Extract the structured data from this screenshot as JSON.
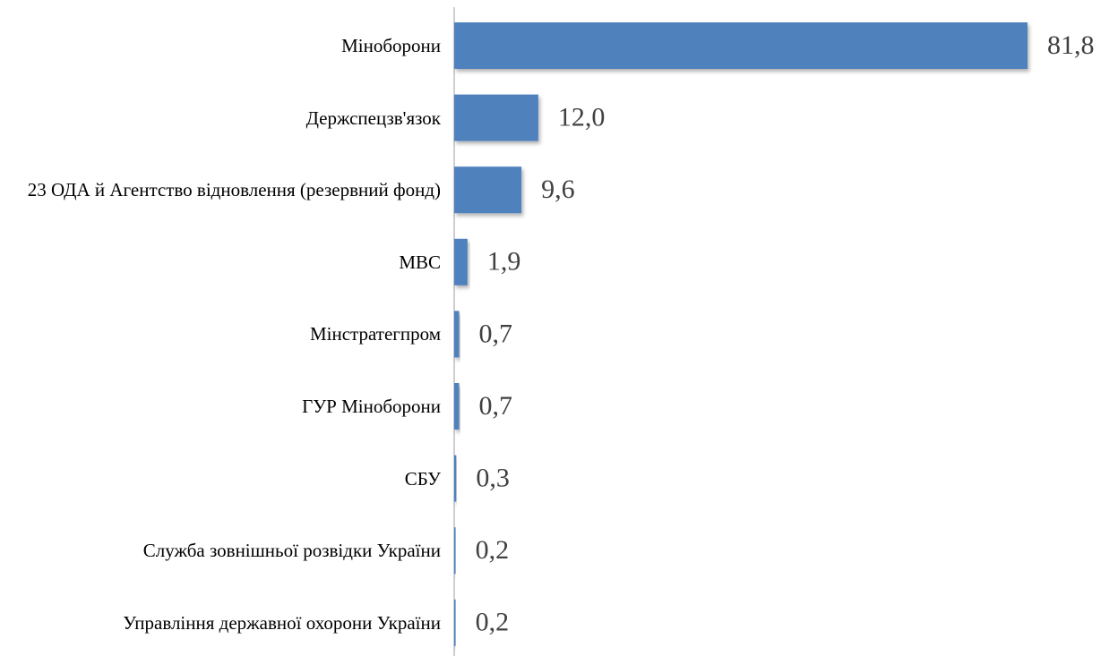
{
  "chart_data": {
    "type": "bar",
    "orientation": "horizontal",
    "categories": [
      "Міноборони",
      "Держспецзв'язок",
      "23 ОДА й Агентство відновлення (резервний фонд)",
      "МВС",
      "Мінстратегпром",
      "ГУР Міноборони",
      "СБУ",
      "Служба зовнішньої розвідки України",
      "Управління державної охорони України"
    ],
    "values": [
      81.8,
      12.0,
      9.6,
      1.9,
      0.7,
      0.7,
      0.3,
      0.2,
      0.2
    ],
    "value_labels": [
      "81,8",
      "12,0",
      "9,6",
      "1,9",
      "0,7",
      "0,7",
      "0,3",
      "0,2",
      "0,2"
    ],
    "color": "#4f81bd",
    "xlim": [
      0,
      90
    ]
  }
}
